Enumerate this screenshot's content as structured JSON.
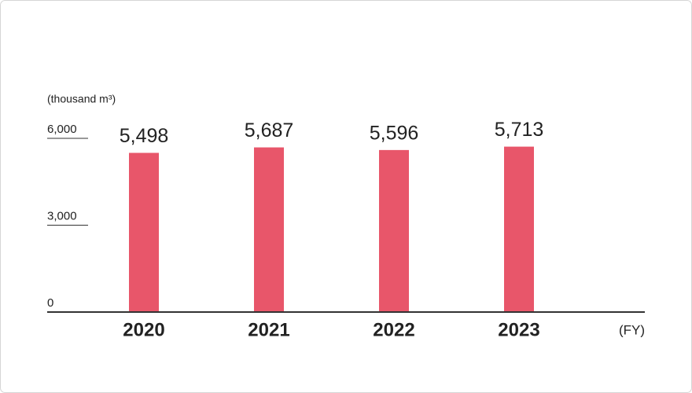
{
  "chart_data": {
    "type": "bar",
    "y_axis_label": "(thousand m³)",
    "x_axis_label": "(FY)",
    "categories": [
      "2020",
      "2021",
      "2022",
      "2023"
    ],
    "values": [
      5498,
      5687,
      5596,
      5713
    ],
    "value_labels": [
      "5,498",
      "5,687",
      "5,596",
      "5,713"
    ],
    "color": "#e8566a",
    "ylim": [
      0,
      6000
    ],
    "yticks": [
      0,
      {
        "value": 3000,
        "label": "3,000"
      },
      {
        "value": 6000,
        "label": "6,000"
      }
    ],
    "grid": false
  }
}
